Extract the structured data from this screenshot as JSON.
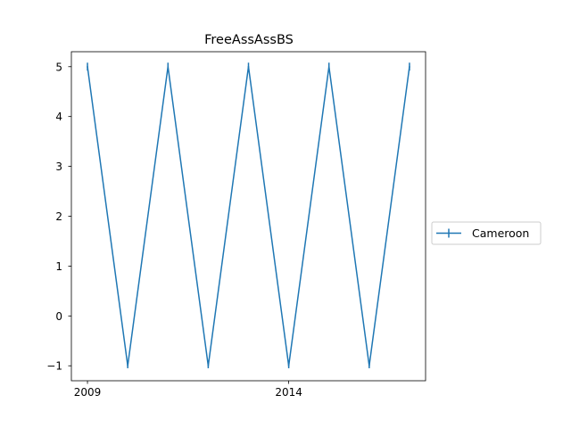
{
  "chart_data": {
    "type": "line",
    "title": "FreeAssAssBS",
    "xlabel": "",
    "ylabel": "",
    "x": [
      2009,
      2010,
      2011,
      2012,
      2013,
      2014,
      2015,
      2016,
      2017
    ],
    "series": [
      {
        "name": "Cameroon",
        "color": "#1f77b4",
        "values": [
          5,
          -1,
          5,
          -1,
          5,
          -1,
          5,
          -1,
          5
        ],
        "error": [
          0.08,
          0.05,
          0.08,
          0.05,
          0.08,
          0.05,
          0.08,
          0.05,
          0.08
        ]
      }
    ],
    "xlim": [
      2008.6,
      2017.4
    ],
    "ylim": [
      -1.3,
      5.3
    ],
    "xticks": [
      2009,
      2014
    ],
    "yticks": [
      -1,
      0,
      1,
      2,
      3,
      4,
      5
    ],
    "ytick_labels": [
      "−1",
      "0",
      "1",
      "2",
      "3",
      "4",
      "5"
    ],
    "grid": false,
    "legend": "center-right, outside axes"
  }
}
